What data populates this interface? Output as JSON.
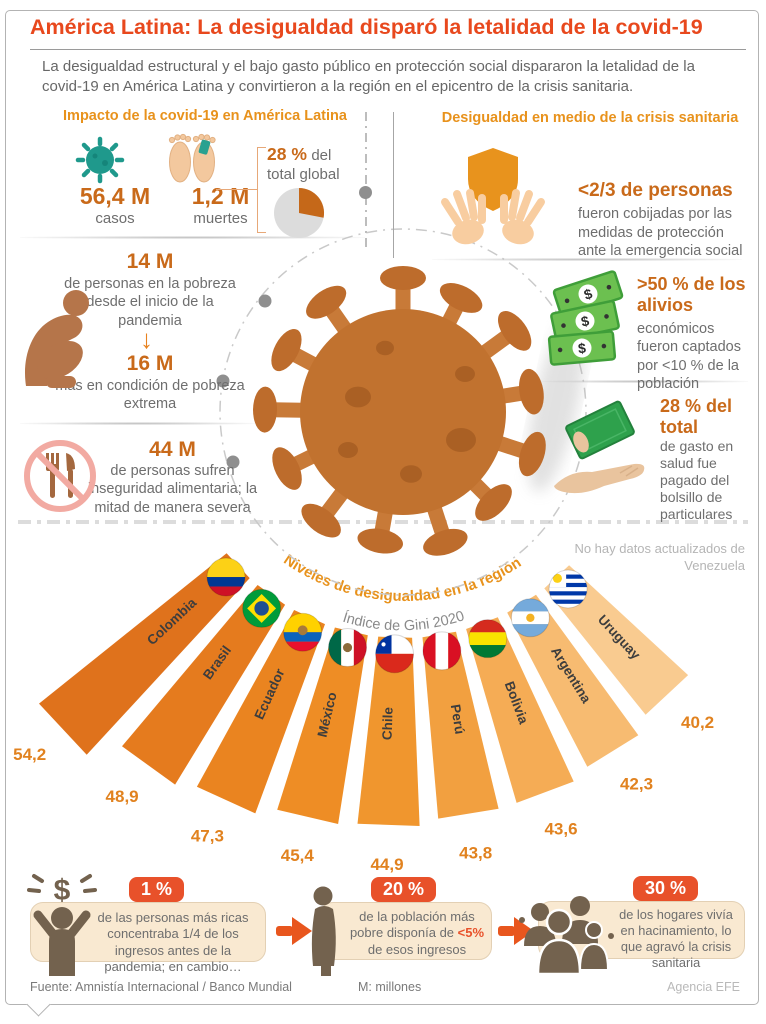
{
  "header": {
    "title": "América Latina: La desigualdad disparó la letalidad de la covid-19",
    "subtitle": "La desigualdad estructural y el bajo gasto público en protección social dispararon la letalidad de la covid-19 en América Latina y convirtieron a la región en el epicentro de la crisis sanitaria."
  },
  "left_section": {
    "title": "Impacto de la covid-19 en América Latina",
    "cases": {
      "value": "56,4 M",
      "label": "casos"
    },
    "deaths": {
      "value": "1,2 M",
      "label": "muertes"
    },
    "global_share": {
      "value": "28 %",
      "suffix": "del",
      "line2": "total global",
      "pie_pct": 28
    },
    "poverty": {
      "value": "14 M",
      "text": "de personas en la pobreza desde el inicio de la pandemia"
    },
    "extreme_poverty": {
      "value": "16 M",
      "text": "más en condición de pobreza extrema"
    },
    "food": {
      "value": "44 M",
      "text": "de personas sufren inseguridad alimentaria; la mitad de manera severa"
    }
  },
  "right_section": {
    "title": "Desigualdad en medio de la crisis sanitaria",
    "protection": {
      "value": "<2/3 de personas",
      "text": "fueron cobijadas por las medidas de protección ante la emergencia social"
    },
    "relief": {
      "value": ">50 % de los alivios",
      "text": "económicos fueron captados por <10 % de la población"
    },
    "health_spend": {
      "value": "28 % del total",
      "text": "de gasto en salud fue pagado del bolsillo de particulares"
    }
  },
  "venezuela_note": "No hay datos actualizados de Venezuela",
  "chart_data": {
    "type": "bar",
    "style": "radial-fan",
    "title": "Niveles de desigualdad en la región",
    "subtitle": "Índice de Gini 2020",
    "categories": [
      "Colombia",
      "Brasil",
      "Ecuador",
      "México",
      "Chile",
      "Perú",
      "Bolivia",
      "Argentina",
      "Uruguay"
    ],
    "values": [
      54.2,
      48.9,
      47.3,
      45.4,
      44.9,
      43.8,
      43.6,
      42.3,
      40.2
    ],
    "value_labels": [
      "54,2",
      "48,9",
      "47,3",
      "45,4",
      "44,9",
      "43,8",
      "43,6",
      "42,3",
      "40,2"
    ],
    "value_range": [
      40.2,
      54.2
    ],
    "legend": "none",
    "bar_colors": [
      "#df721c",
      "#e57b1e",
      "#ea8420",
      "#ee8d25",
      "#f0962e",
      "#f2a040",
      "#f5ac55",
      "#f7bb71",
      "#f9cb90"
    ],
    "value_label_color": "#e1821f",
    "category_label_color": "#3d3d3d",
    "flags": [
      {
        "name": "colombia",
        "type": "h",
        "stripes": [
          [
            "#fcd116",
            0.5
          ],
          [
            "#003893",
            0.25
          ],
          [
            "#ce1126",
            0.25
          ]
        ]
      },
      {
        "name": "brasil",
        "type": "brasil",
        "bg": "#009b3a",
        "diamond": "#fedf00",
        "circle": "#1d4f91"
      },
      {
        "name": "ecuador",
        "type": "h",
        "stripes": [
          [
            "#ffd100",
            0.5
          ],
          [
            "#0b63bc",
            0.25
          ],
          [
            "#e8112d",
            0.25
          ]
        ],
        "emblem": {
          "color": "#a87a3a",
          "r": 0.13,
          "cy": 0.45
        }
      },
      {
        "name": "mexico",
        "type": "v",
        "stripes": [
          [
            "#006847",
            0.333
          ],
          [
            "#ffffff",
            0.334
          ],
          [
            "#ce1126",
            0.333
          ]
        ],
        "emblem": {
          "color": "#8c6a39",
          "r": 0.12,
          "cy": 0.5
        }
      },
      {
        "name": "chile",
        "type": "chile",
        "blue": "#0033a0",
        "red": "#da291c"
      },
      {
        "name": "peru",
        "type": "v",
        "stripes": [
          [
            "#d91023",
            0.333
          ],
          [
            "#ffffff",
            0.334
          ],
          [
            "#d91023",
            0.333
          ]
        ]
      },
      {
        "name": "bolivia",
        "type": "h",
        "stripes": [
          [
            "#d52b1e",
            0.333
          ],
          [
            "#f9e300",
            0.334
          ],
          [
            "#007934",
            0.333
          ]
        ]
      },
      {
        "name": "argentina",
        "type": "h",
        "stripes": [
          [
            "#75aadb",
            0.333
          ],
          [
            "#ffffff",
            0.334
          ],
          [
            "#75aadb",
            0.333
          ]
        ],
        "emblem": {
          "color": "#f4b223",
          "r": 0.11,
          "cy": 0.5
        }
      },
      {
        "name": "uruguay",
        "type": "uruguay",
        "blue": "#0038a8",
        "sun": "#fcd116"
      }
    ]
  },
  "bottom": {
    "cards": [
      {
        "badge": "1 %",
        "text": "de las personas más ricas concentraba 1/4 de los ingresos antes de la pandemia; en cambio…"
      },
      {
        "badge": "20 %",
        "pre": "de la población más pobre disponía de ",
        "highlight": "<5%",
        "post": " de esos ingresos"
      },
      {
        "badge": "30 %",
        "text": "de los hogares vivía en hacinamiento, lo que agravó la crisis sanitaria"
      }
    ]
  },
  "footer": {
    "source": "Fuente: Amnistía Internacional / Banco Mundial",
    "note": "M: millones",
    "agency": "Agencia EFE"
  },
  "glyphs": {
    "dollar": "$",
    "down_arrow": "↓"
  },
  "icons": {
    "cases": "virus-icon",
    "deaths": "feet-tag-icon",
    "global_share": "pie-chart-icon",
    "poverty": "crouching-person-icon",
    "food": "no-food-icon",
    "protection": "hands-shield-icon",
    "relief": "banknotes-icon",
    "health_spend": "money-hand-icon",
    "card1": "rich-person-dollar-icon",
    "card2": "poor-person-icon",
    "card3": "crowd-icon"
  },
  "colors": {
    "title_red": "#e8481d",
    "section_orange": "#e8921c",
    "number_orange": "#c96a1a",
    "text_gray": "#6e6e6e",
    "badge_red": "#e8512a",
    "card_bg": "#f9e9d1",
    "virus_body": "#c1722f",
    "teal": "#1f998c",
    "pie_wedge": "#c56819"
  }
}
